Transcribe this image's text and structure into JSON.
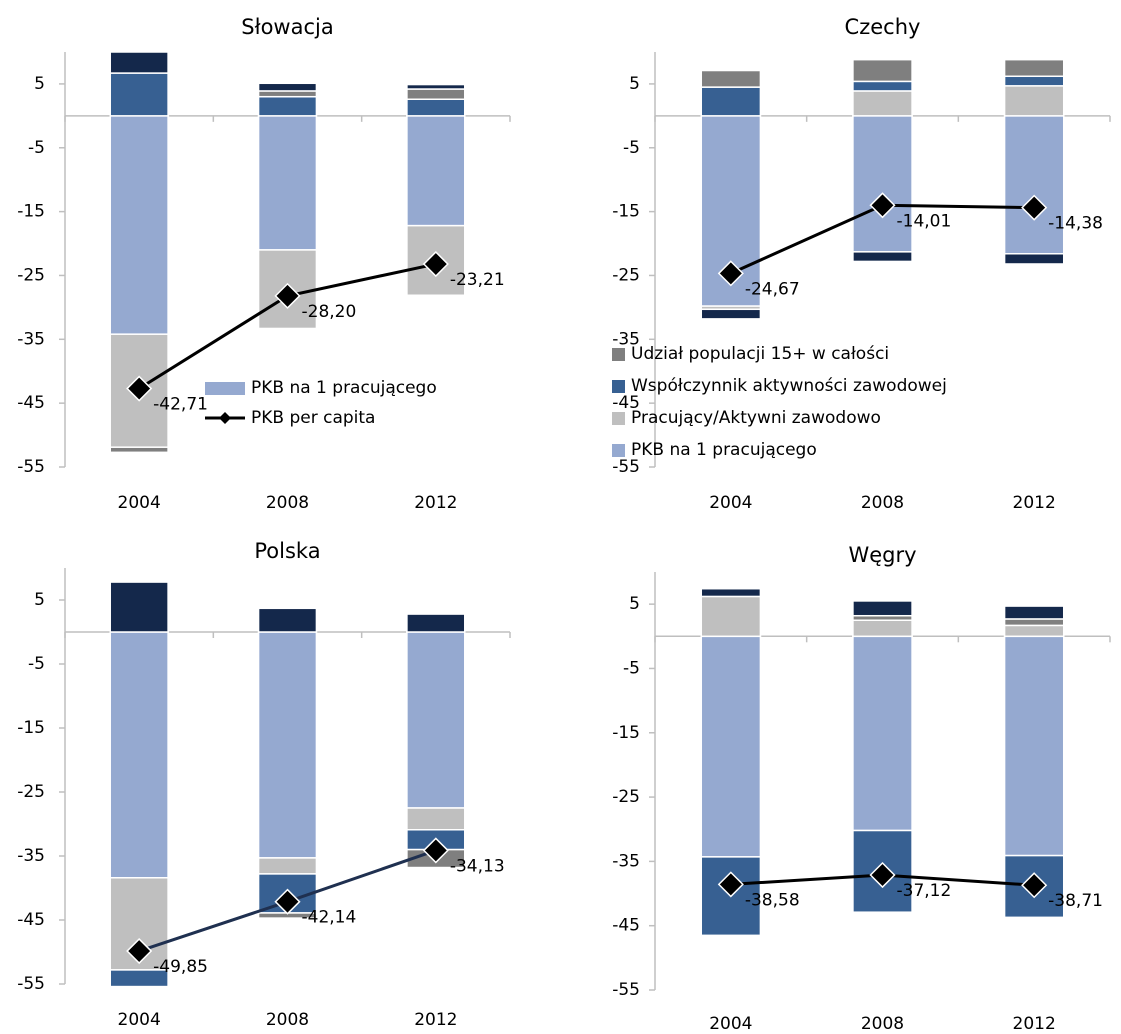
{
  "chart_data": [
    {
      "type": "bar",
      "stacked": true,
      "title": "Słowacja",
      "categories": [
        "2004",
        "2008",
        "2012"
      ],
      "ylim": [
        -55,
        10
      ],
      "yticks": [
        5,
        -5,
        -15,
        -25,
        -35,
        -45,
        -55
      ],
      "legend": "lower right",
      "series": [
        {
          "name": "PKB na 1 pracującego",
          "color": "#95a9d0",
          "values": [
            -34.2,
            -21.0,
            -17.2
          ]
        },
        {
          "color": "#bfbfbf",
          "values": [
            -17.7,
            -12.3,
            -10.9
          ]
        },
        {
          "color": "#376092",
          "values": [
            6.7,
            3.0,
            2.6
          ]
        },
        {
          "color": "#7f7f7f",
          "values": [
            -0.8,
            0.9,
            1.6
          ]
        },
        {
          "color": "#14284b",
          "values": [
            3.3,
            1.2,
            0.7
          ]
        },
        {
          "name": "PKB per capita",
          "type": "line",
          "color": "#000000",
          "values": [
            -42.71,
            -28.2,
            -23.21
          ],
          "value_labels": [
            "-42,71",
            "-28,20",
            "-23,21"
          ]
        }
      ]
    },
    {
      "type": "bar",
      "stacked": true,
      "title": "Czechy",
      "categories": [
        "2004",
        "2008",
        "2012"
      ],
      "ylim": [
        -55,
        10
      ],
      "yticks": [
        5,
        -5,
        -15,
        -25,
        -35,
        -45,
        -55
      ],
      "legend": "lower left",
      "series": [
        {
          "name": "PKB na 1 pracującego",
          "color": "#95a9d0",
          "values": [
            -29.8,
            -21.3,
            -21.6
          ]
        },
        {
          "name": "Pracujący/Aktywni zawodowo",
          "color": "#bfbfbf",
          "values": [
            -0.5,
            3.9,
            4.7
          ]
        },
        {
          "name": "Współczynnik aktywności zawodowej",
          "color": "#376092",
          "values": [
            4.5,
            1.5,
            1.5
          ]
        },
        {
          "name": "Udział populacji 15+ w całości",
          "color": "#7f7f7f",
          "values": [
            2.6,
            3.4,
            2.6
          ]
        },
        {
          "color": "#14284b",
          "values": [
            -1.5,
            -1.5,
            -1.6
          ]
        },
        {
          "type": "line",
          "color": "#000000",
          "values": [
            -24.67,
            -14.01,
            -14.38
          ],
          "value_labels": [
            "-24,67",
            "-14,01",
            "-14,38"
          ]
        }
      ]
    },
    {
      "type": "bar",
      "stacked": true,
      "title": "Polska",
      "categories": [
        "2004",
        "2008",
        "2012"
      ],
      "ylim": [
        -55,
        10
      ],
      "yticks": [
        5,
        -5,
        -15,
        -25,
        -35,
        -45,
        -55
      ],
      "series": [
        {
          "color": "#95a9d0",
          "values": [
            -38.4,
            -35.3,
            -27.5
          ]
        },
        {
          "color": "#bfbfbf",
          "values": [
            -14.4,
            -2.5,
            -3.4
          ]
        },
        {
          "color": "#376092",
          "values": [
            -2.6,
            -6.1,
            -3.1
          ]
        },
        {
          "color": "#7f7f7f",
          "values": [
            0,
            -0.8,
            -2.8
          ]
        },
        {
          "color": "#14284b",
          "values": [
            7.8,
            3.7,
            2.8
          ]
        },
        {
          "type": "line",
          "color": "#1f3050",
          "values": [
            -49.85,
            -42.14,
            -34.13
          ],
          "value_labels": [
            "-49,85",
            "-42,14",
            "-34,13"
          ]
        }
      ]
    },
    {
      "type": "bar",
      "stacked": true,
      "title": "Węgry",
      "categories": [
        "2004",
        "2008",
        "2012"
      ],
      "ylim": [
        -55,
        10
      ],
      "yticks": [
        5,
        -5,
        -15,
        -25,
        -35,
        -45,
        -55
      ],
      "series": [
        {
          "color": "#95a9d0",
          "values": [
            -34.3,
            -30.2,
            -34.1
          ]
        },
        {
          "color": "#bfbfbf",
          "values": [
            6.2,
            2.5,
            1.7
          ]
        },
        {
          "color": "#376092",
          "values": [
            -12.2,
            -12.7,
            -9.6
          ]
        },
        {
          "color": "#7f7f7f",
          "values": [
            0,
            0.7,
            1.0
          ]
        },
        {
          "color": "#14284b",
          "values": [
            1.2,
            2.3,
            2.0
          ]
        },
        {
          "type": "line",
          "color": "#000000",
          "values": [
            -38.58,
            -37.12,
            -38.71
          ],
          "value_labels": [
            "-38,58",
            "-37,12",
            "-38,71"
          ]
        }
      ]
    }
  ]
}
